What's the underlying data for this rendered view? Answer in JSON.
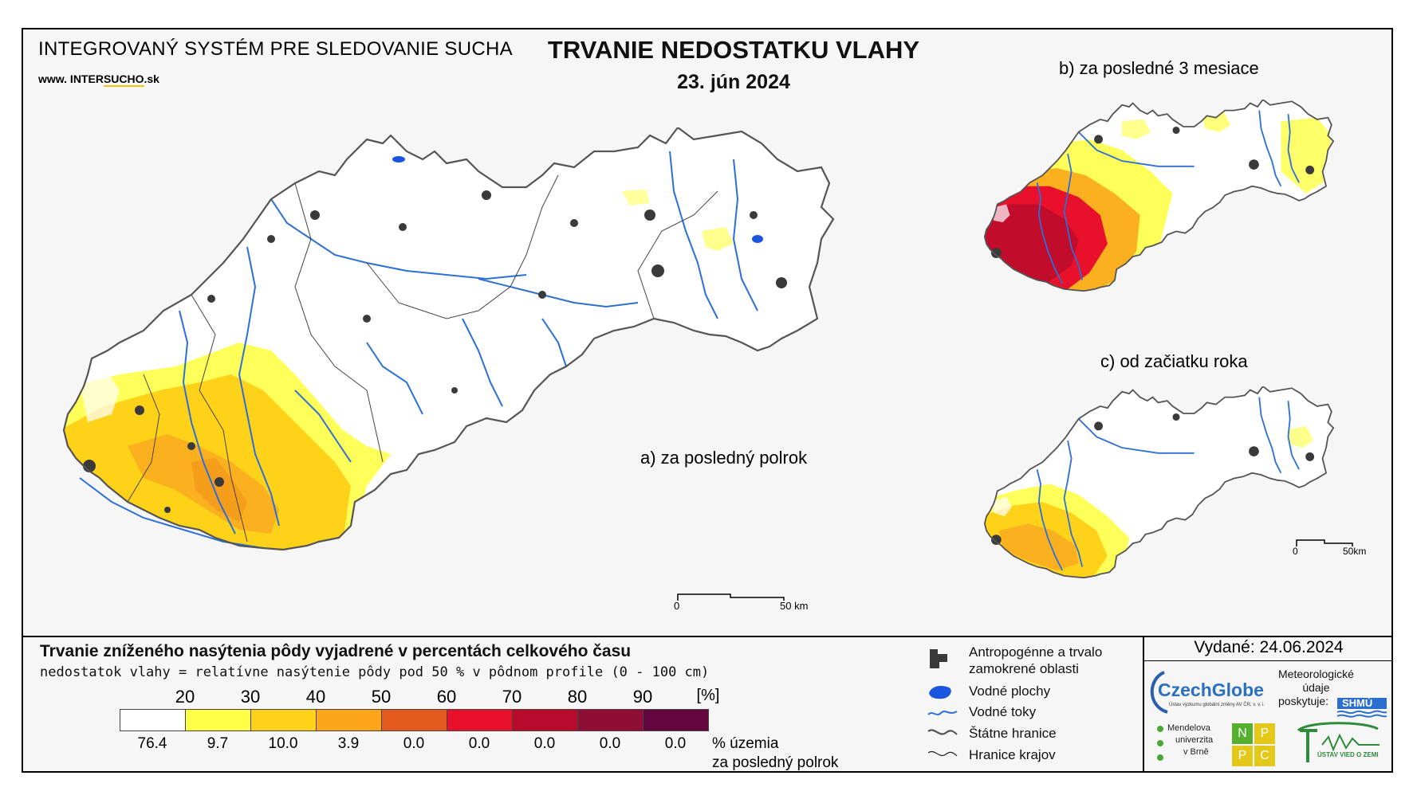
{
  "header": {
    "system_title": "INTEGROVANÝ SYSTÉM PRE SLEDOVANIE SUCHA",
    "website_prefix": "www. INTER",
    "website_highlight": "SUCHO",
    "website_suffix": ".sk",
    "map_title": "TRVANIE NEDOSTATKU VLAHY",
    "map_date": "23. jún 2024"
  },
  "maps": {
    "a_caption": "a) za posledný polrok",
    "b_caption": "b) za posledné 3 mesiace",
    "c_caption": "c) od začiatku roka",
    "scale_main": {
      "zero": "0",
      "end": "50 km"
    },
    "scale_small": {
      "zero": "0",
      "end": "50km"
    }
  },
  "legend": {
    "title": "Trvanie zníženého nasýtenia pôdy vyjadrené v percentách celkového času",
    "subtitle": "nedostatok vlahy = relatívne nasýtenie pôdy pod 50 % v pôdnom profile (0 - 100 cm)",
    "thresholds": [
      "20",
      "30",
      "40",
      "50",
      "60",
      "70",
      "80",
      "90"
    ],
    "unit": "[%]",
    "classes": [
      {
        "color": "#ffffff",
        "value": "76.4"
      },
      {
        "color": "#ffff4a",
        "value": "9.7"
      },
      {
        "color": "#ffd21a",
        "value": "10.0"
      },
      {
        "color": "#fca41a",
        "value": "3.9"
      },
      {
        "color": "#e45a1c",
        "value": "0.0"
      },
      {
        "color": "#e8102a",
        "value": "0.0"
      },
      {
        "color": "#b80a2a",
        "value": "0.0"
      },
      {
        "color": "#8e0e36",
        "value": "0.0"
      },
      {
        "color": "#63073e",
        "value": "0.0"
      }
    ],
    "share_label_line1": "% územia",
    "share_label_line2": "za posledný polrok"
  },
  "key": {
    "urban": "Antropogénne a trvalo zamokrené oblasti",
    "urban_line1": "Antropogénne a trvalo",
    "urban_line2": "zamokrené oblasti",
    "water_bodies": "Vodné plochy",
    "rivers": "Vodné toky",
    "state_border": "Štátne hranice",
    "region_border": "Hranice krajov"
  },
  "credits": {
    "issued": "Vydané: 24.06.2024",
    "czechglobe": "CzechGlobe",
    "czechglobe_sub": "Ústav výzkumu globální změny AV ČR, v. v. i.",
    "meteo_line1": "Meteorologické",
    "meteo_line2": "údaje",
    "meteo_line3": "poskytuje:",
    "shmu": "SHMÚ",
    "mendel_line1": "Mendelova",
    "mendel_line2": "univerzita",
    "mendel_line3": "v Brně",
    "nppc": [
      "N",
      "P",
      "P",
      "C"
    ],
    "usvz": "ÚSTAV VIED O ZEMI"
  },
  "colors": {
    "river": "#2c6fd6",
    "urban": "#3a3a3a",
    "border": "#333333"
  }
}
